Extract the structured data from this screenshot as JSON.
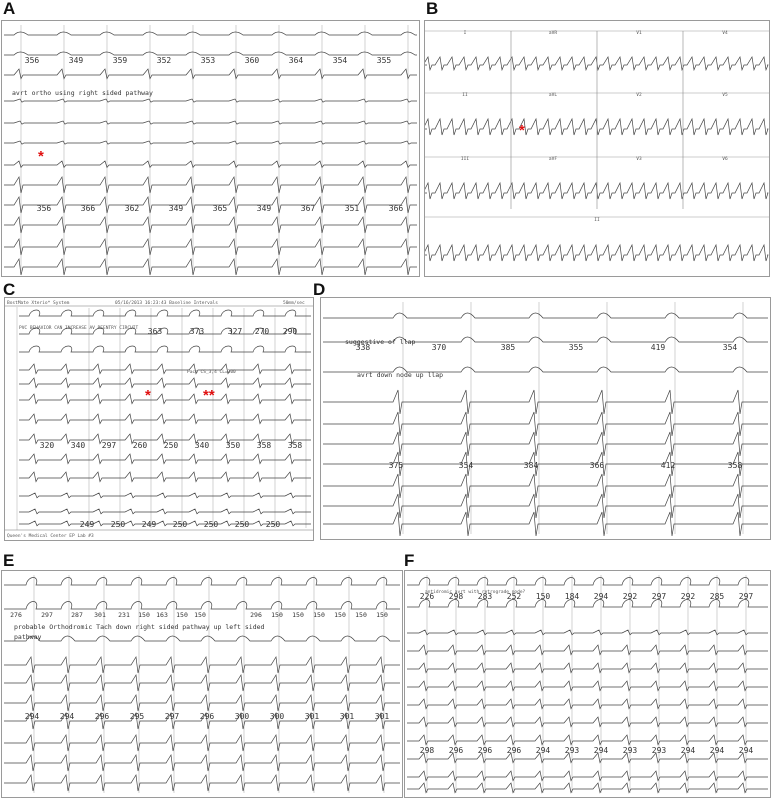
{
  "panels": {
    "A": {
      "label": "A",
      "annotation": "avrt ortho using right sided pathway",
      "intervals_top": [
        "356",
        "349",
        "359",
        "352",
        "353",
        "360",
        "364",
        "354",
        "355"
      ],
      "intervals_bottom": [
        "356",
        "366",
        "362",
        "349",
        "365",
        "349",
        "367",
        "351",
        "366"
      ]
    },
    "B": {
      "label": "B",
      "leads": [
        "I",
        "aVR",
        "V1",
        "V4",
        "II",
        "aVL",
        "V2",
        "V5",
        "III",
        "aVF",
        "V3",
        "V6",
        "II"
      ]
    },
    "C": {
      "label": "C",
      "header_left": "BostMate Xterio* System",
      "header_mid": "05/16/2013 16:23:43 Baseline Intervals",
      "header_right": "50mm/sec",
      "annotation": "PVC BEHAVIOR CAN INCREASE AV REENTRY CIRCUIT",
      "pace_label": "Pace CS_3,4 CL=300",
      "footer": "Queen's Medical Center EP Lab #3",
      "intervals_top": [
        "363",
        "373",
        "327",
        "270",
        "290"
      ],
      "intervals_mid": [
        "320",
        "340",
        "297",
        "260",
        "250",
        "340",
        "350",
        "358",
        "358"
      ],
      "intervals_bottom": [
        "249",
        "250",
        "249",
        "250",
        "250",
        "250",
        "250"
      ]
    },
    "D": {
      "label": "D",
      "annotation1": "suggestive of llap",
      "annotation2": "avrt down node up llap",
      "intervals_top": [
        "338",
        "370",
        "385",
        "355",
        "419",
        "354"
      ],
      "intervals_bottom": [
        "375",
        "354",
        "384",
        "366",
        "412",
        "358"
      ]
    },
    "E": {
      "label": "E",
      "annotation1": "probable Orthodromic Tach down right sided pathway up left sided",
      "annotation2": "pathway",
      "intervals_top": [
        "276",
        "297",
        "287",
        "301",
        "231",
        "150",
        "163",
        "150",
        "150",
        "296",
        "150",
        "150",
        "150",
        "150",
        "150",
        "150"
      ],
      "intervals_bottom": [
        "294",
        "294",
        "296",
        "295",
        "297",
        "296",
        "300",
        "300",
        "301",
        "301",
        "301"
      ]
    },
    "F": {
      "label": "F",
      "annotation": "antidromic avrt with retrograde node?",
      "intervals_top": [
        "226",
        "298",
        "283",
        "252",
        "150",
        "184",
        "294",
        "292",
        "297",
        "292",
        "285",
        "297"
      ],
      "intervals_bottom": [
        "298",
        "296",
        "296",
        "296",
        "294",
        "293",
        "294",
        "293",
        "293",
        "294",
        "294",
        "294"
      ]
    }
  }
}
